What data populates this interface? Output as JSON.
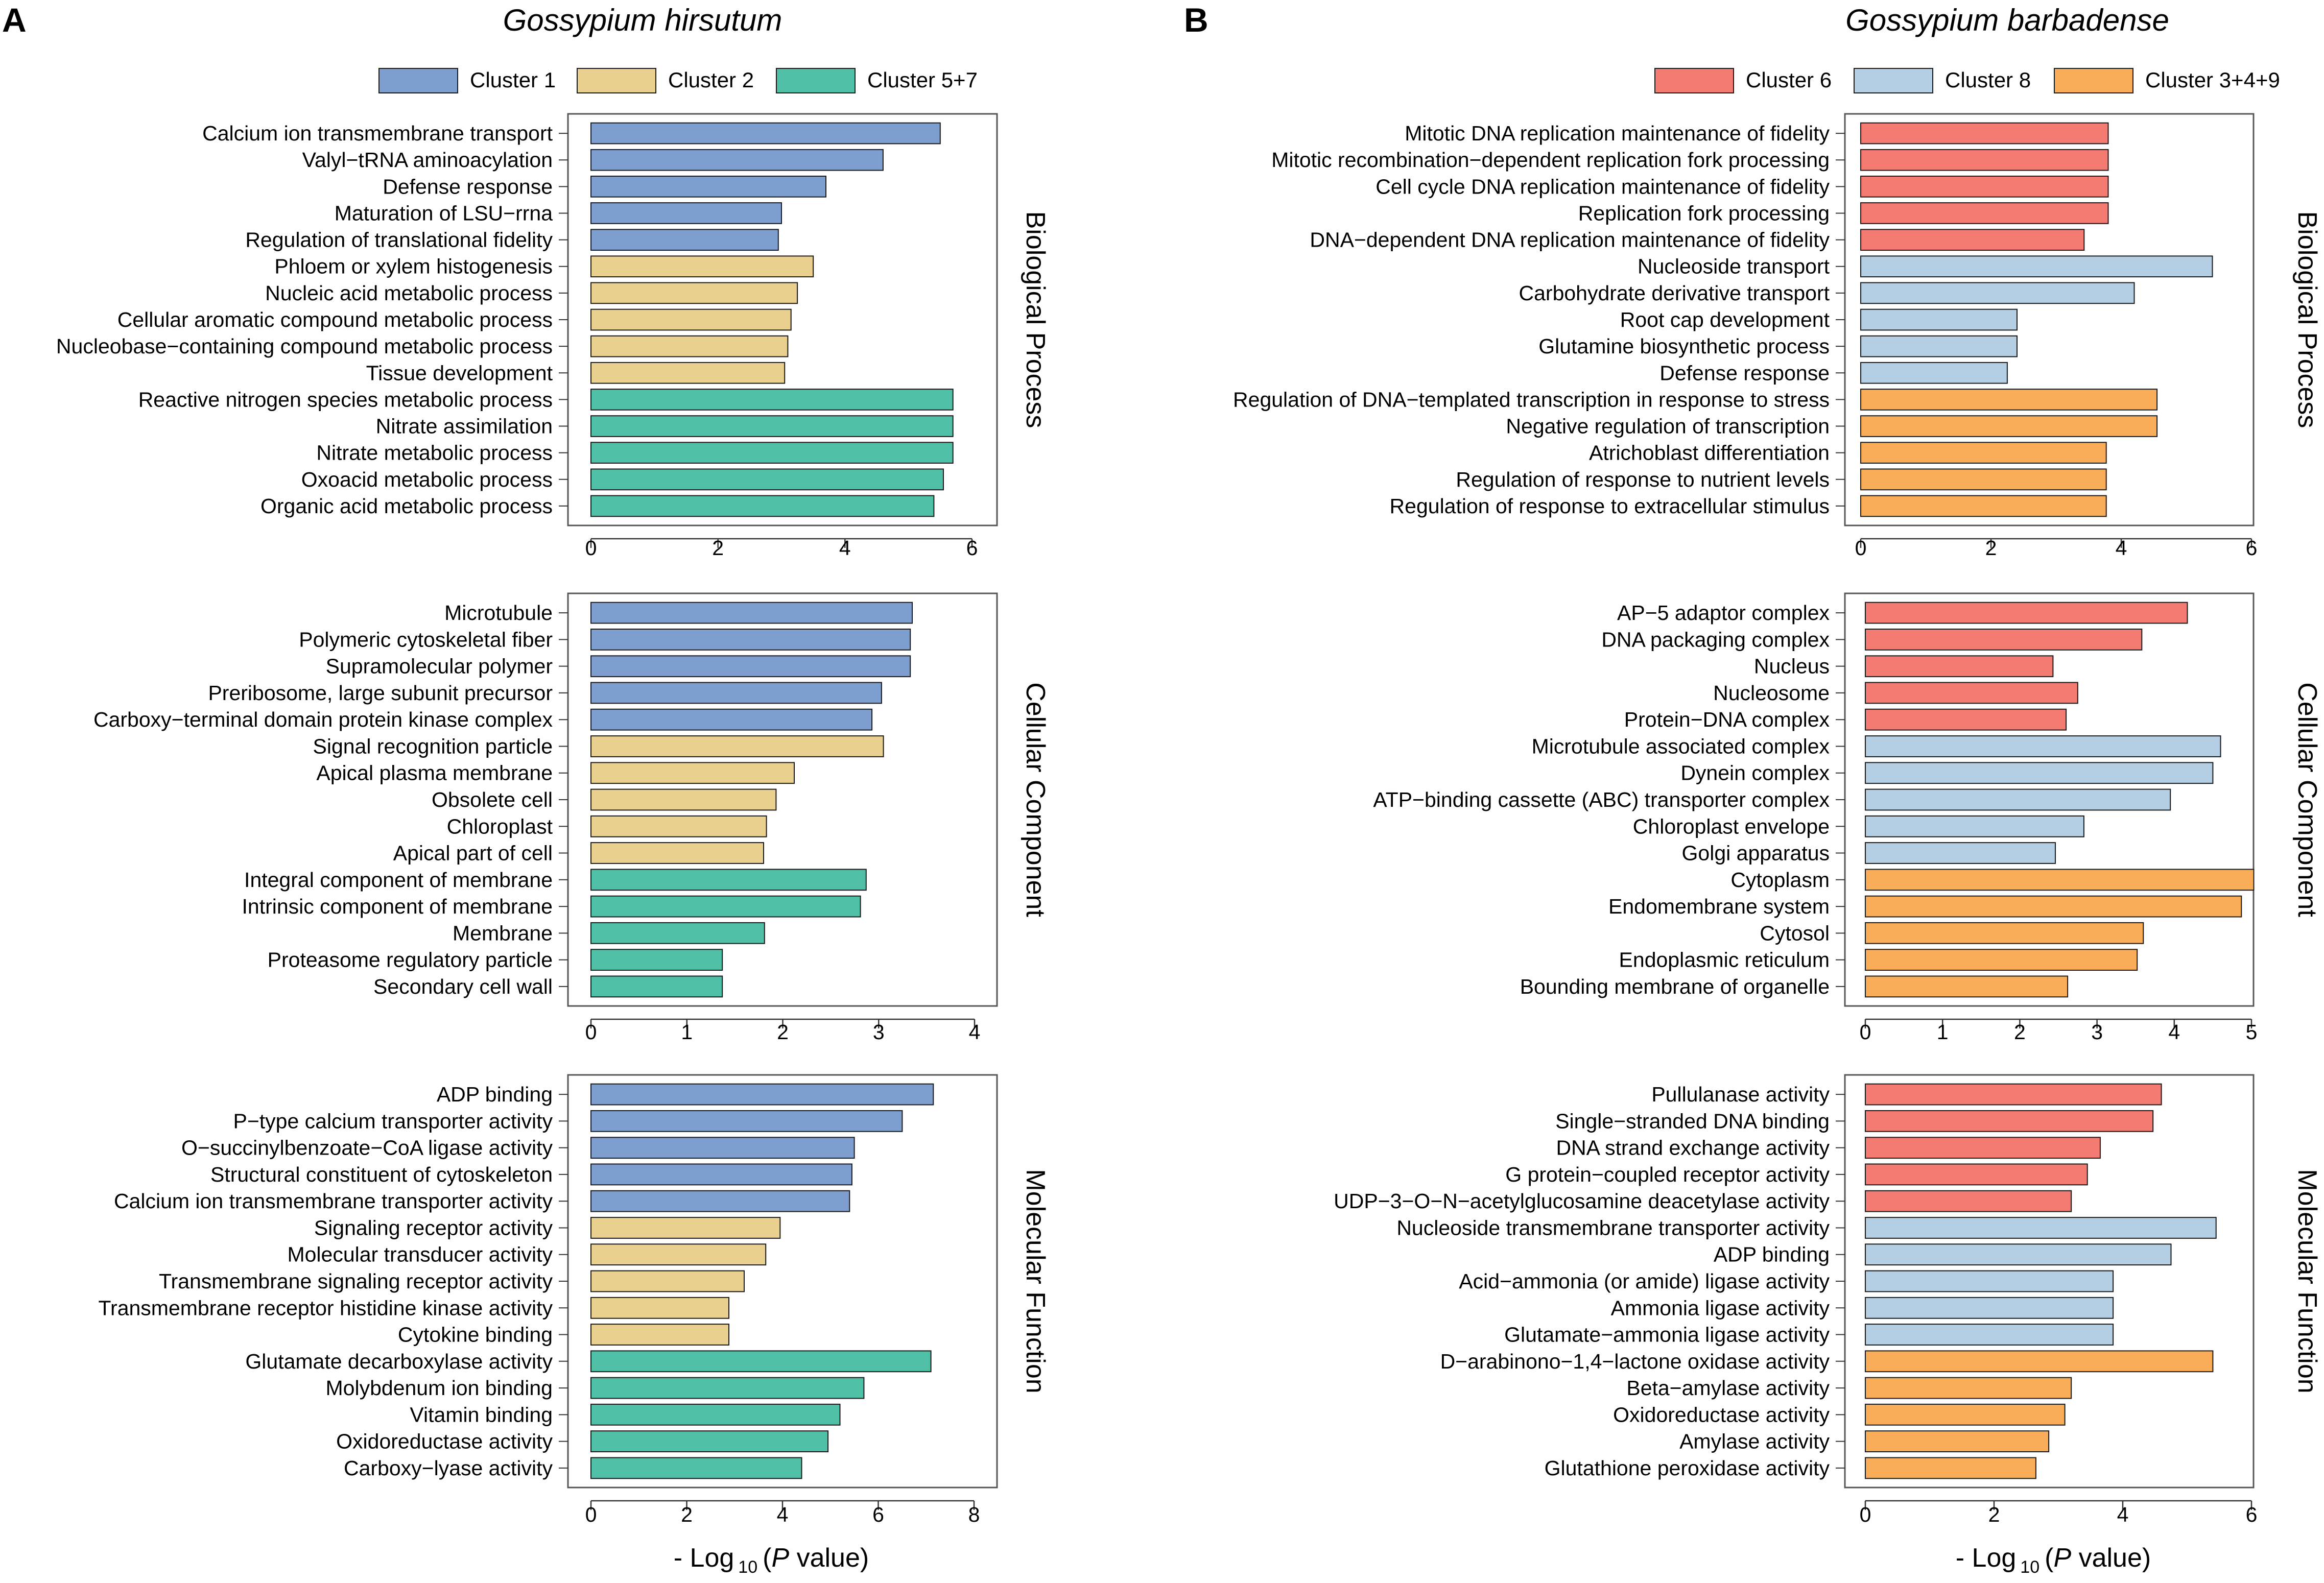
{
  "colors": {
    "cluster1": "#7f9ed0",
    "cluster2": "#e9d08f",
    "cluster57": "#4fbfa6",
    "cluster6": "#f47b72",
    "cluster8": "#b4cfe4",
    "cluster349": "#f9ad59",
    "bar_stroke": "#1a1a1a",
    "frame": "#555555"
  },
  "panels": [
    {
      "letter": "A",
      "species": "Gossypium hirsutum",
      "legend": [
        {
          "label": "Cluster 1",
          "color_key": "cluster1"
        },
        {
          "label": "Cluster 2",
          "color_key": "cluster2"
        },
        {
          "label": "Cluster 5+7",
          "color_key": "cluster57"
        }
      ],
      "x_title": {
        "prefix": "- Log",
        "sub": "10",
        "open": "(",
        "italic": "P",
        "rest": " value)"
      }
    },
    {
      "letter": "B",
      "species": "Gossypium barbadense",
      "legend": [
        {
          "label": "Cluster 6",
          "color_key": "cluster6"
        },
        {
          "label": "Cluster 8",
          "color_key": "cluster8"
        },
        {
          "label": "Cluster 3+4+9",
          "color_key": "cluster349"
        }
      ],
      "x_title": {
        "prefix": "- Log",
        "sub": "10",
        "open": "(",
        "italic": "P",
        "rest": " value)"
      }
    }
  ],
  "chart_data": [
    {
      "type": "bar",
      "orientation": "horizontal",
      "panel": "A",
      "facet": "Biological Process",
      "xlabel": "- Log10 (P value)",
      "xlim": [
        0,
        6
      ],
      "xticks": [
        0,
        2,
        4,
        6
      ],
      "categories": [
        "Calcium ion transmembrane transport",
        "Valyl−tRNA aminoacylation",
        "Defense response",
        "Maturation of LSU−rrna",
        "Regulation of translational fidelity",
        "Phloem or xylem histogenesis",
        "Nucleic acid metabolic process",
        "Cellular aromatic compound metabolic process",
        "Nucleobase−containing compound metabolic process",
        "Tissue development",
        "Reactive nitrogen species metabolic process",
        "Nitrate assimilation",
        "Nitrate metabolic process",
        "Oxoacid metabolic process",
        "Organic acid metabolic process"
      ],
      "values": [
        5.5,
        4.6,
        3.7,
        3.0,
        2.95,
        3.5,
        3.25,
        3.15,
        3.1,
        3.05,
        5.7,
        5.7,
        5.7,
        5.55,
        5.4
      ],
      "clusters": [
        "cluster1",
        "cluster1",
        "cluster1",
        "cluster1",
        "cluster1",
        "cluster2",
        "cluster2",
        "cluster2",
        "cluster2",
        "cluster2",
        "cluster57",
        "cluster57",
        "cluster57",
        "cluster57",
        "cluster57"
      ]
    },
    {
      "type": "bar",
      "orientation": "horizontal",
      "panel": "A",
      "facet": "Cellular Component",
      "xlabel": "- Log10 (P value)",
      "xlim": [
        0,
        4
      ],
      "xticks": [
        0,
        1,
        2,
        3,
        4
      ],
      "categories": [
        "Microtubule",
        "Polymeric cytoskeletal fiber",
        "Supramolecular polymer",
        "Preribosome, large subunit precursor",
        "Carboxy−terminal domain protein kinase complex",
        "Signal recognition particle",
        "Apical plasma membrane",
        "Obsolete cell",
        "Chloroplast",
        "Apical part of cell",
        "Integral component of membrane",
        "Intrinsic component of membrane",
        "Membrane",
        "Proteasome regulatory particle",
        "Secondary cell wall"
      ],
      "values": [
        3.35,
        3.33,
        3.33,
        3.03,
        2.93,
        3.05,
        2.12,
        1.93,
        1.83,
        1.8,
        2.87,
        2.81,
        1.81,
        1.37,
        1.37
      ],
      "clusters": [
        "cluster1",
        "cluster1",
        "cluster1",
        "cluster1",
        "cluster1",
        "cluster2",
        "cluster2",
        "cluster2",
        "cluster2",
        "cluster2",
        "cluster57",
        "cluster57",
        "cluster57",
        "cluster57",
        "cluster57"
      ]
    },
    {
      "type": "bar",
      "orientation": "horizontal",
      "panel": "A",
      "facet": "Molecular Function",
      "xlabel": "- Log10 (P value)",
      "xlim": [
        0,
        8
      ],
      "xticks": [
        0,
        2,
        4,
        6,
        8
      ],
      "categories": [
        "ADP binding",
        "P−type calcium transporter activity",
        "O−succinylbenzoate−CoA ligase activity",
        "Structural constituent of cytoskeleton",
        "Calcium ion transmembrane transporter activity",
        "Signaling receptor activity",
        "Molecular transducer activity",
        "Transmembrane signaling receptor activity",
        "Transmembrane receptor histidine kinase activity",
        "Cytokine binding",
        "Glutamate decarboxylase activity",
        "Molybdenum ion binding",
        "Vitamin binding",
        "Oxidoreductase activity",
        "Carboxy−lyase activity"
      ],
      "values": [
        7.15,
        6.5,
        5.5,
        5.45,
        5.4,
        3.95,
        3.65,
        3.2,
        2.88,
        2.88,
        7.1,
        5.7,
        5.2,
        4.95,
        4.4
      ],
      "clusters": [
        "cluster1",
        "cluster1",
        "cluster1",
        "cluster1",
        "cluster1",
        "cluster2",
        "cluster2",
        "cluster2",
        "cluster2",
        "cluster2",
        "cluster57",
        "cluster57",
        "cluster57",
        "cluster57",
        "cluster57"
      ]
    },
    {
      "type": "bar",
      "orientation": "horizontal",
      "panel": "B",
      "facet": "Biological Process",
      "xlabel": "- Log10 (P value)",
      "xlim": [
        0,
        6
      ],
      "xticks": [
        0,
        2,
        4,
        6
      ],
      "categories": [
        "Mitotic DNA replication maintenance of fidelity",
        "Mitotic recombination−dependent replication fork processing",
        "Cell cycle DNA replication maintenance of fidelity",
        "Replication fork processing",
        "DNA−dependent DNA replication maintenance of fidelity",
        "Nucleoside transport",
        "Carbohydrate derivative transport",
        "Root cap development",
        "Glutamine biosynthetic process",
        "Defense response",
        "Regulation of DNA−templated transcription in response to stress",
        "Negative regulation of transcription",
        "Atrichoblast differentiation",
        "Regulation of response to nutrient levels",
        "Regulation of response to extracellular stimulus"
      ],
      "values": [
        3.8,
        3.8,
        3.8,
        3.8,
        3.43,
        5.4,
        4.2,
        2.4,
        2.4,
        2.25,
        4.55,
        4.55,
        3.77,
        3.77,
        3.77
      ],
      "clusters": [
        "cluster6",
        "cluster6",
        "cluster6",
        "cluster6",
        "cluster6",
        "cluster8",
        "cluster8",
        "cluster8",
        "cluster8",
        "cluster8",
        "cluster349",
        "cluster349",
        "cluster349",
        "cluster349",
        "cluster349"
      ]
    },
    {
      "type": "bar",
      "orientation": "horizontal",
      "panel": "B",
      "facet": "Cellular Component",
      "xlabel": "- Log10 (P value)",
      "xlim": [
        0,
        5
      ],
      "xticks": [
        0,
        1,
        2,
        3,
        4,
        5
      ],
      "categories": [
        "AP−5 adaptor complex",
        "DNA packaging complex",
        "Nucleus",
        "Nucleosome",
        "Protein−DNA complex",
        "Microtubule associated complex",
        "Dynein complex",
        "ATP−binding cassette (ABC) transporter complex",
        "Chloroplast envelope",
        "Golgi apparatus",
        "Cytoplasm",
        "Endomembrane system",
        "Cytosol",
        "Endoplasmic reticulum",
        "Bounding membrane of organelle"
      ],
      "values": [
        4.17,
        3.58,
        2.43,
        2.75,
        2.6,
        4.6,
        4.5,
        3.95,
        2.83,
        2.46,
        5.03,
        4.87,
        3.6,
        3.52,
        2.62
      ],
      "clusters": [
        "cluster6",
        "cluster6",
        "cluster6",
        "cluster6",
        "cluster6",
        "cluster8",
        "cluster8",
        "cluster8",
        "cluster8",
        "cluster8",
        "cluster349",
        "cluster349",
        "cluster349",
        "cluster349",
        "cluster349"
      ]
    },
    {
      "type": "bar",
      "orientation": "horizontal",
      "panel": "B",
      "facet": "Molecular Function",
      "xlabel": "- Log10 (P value)",
      "xlim": [
        0,
        6
      ],
      "xticks": [
        0,
        2,
        4,
        6
      ],
      "categories": [
        "Pullulanase activity",
        "Single−stranded DNA binding",
        "DNA strand exchange activity",
        "G protein−coupled receptor activity",
        "UDP−3−O−N−acetylglucosamine deacetylase activity",
        "Nucleoside transmembrane transporter activity",
        "ADP binding",
        "Acid−ammonia (or amide) ligase activity",
        "Ammonia ligase activity",
        "Glutamate−ammonia ligase activity",
        "D−arabinono−1,4−lactone oxidase activity",
        "Beta−amylase activity",
        "Oxidoreductase activity",
        "Amylase activity",
        "Glutathione peroxidase activity"
      ],
      "values": [
        4.6,
        4.47,
        3.65,
        3.45,
        3.2,
        5.45,
        4.75,
        3.85,
        3.85,
        3.85,
        5.4,
        3.2,
        3.1,
        2.85,
        2.65
      ],
      "clusters": [
        "cluster6",
        "cluster6",
        "cluster6",
        "cluster6",
        "cluster6",
        "cluster8",
        "cluster8",
        "cluster8",
        "cluster8",
        "cluster8",
        "cluster349",
        "cluster349",
        "cluster349",
        "cluster349",
        "cluster349"
      ]
    }
  ]
}
